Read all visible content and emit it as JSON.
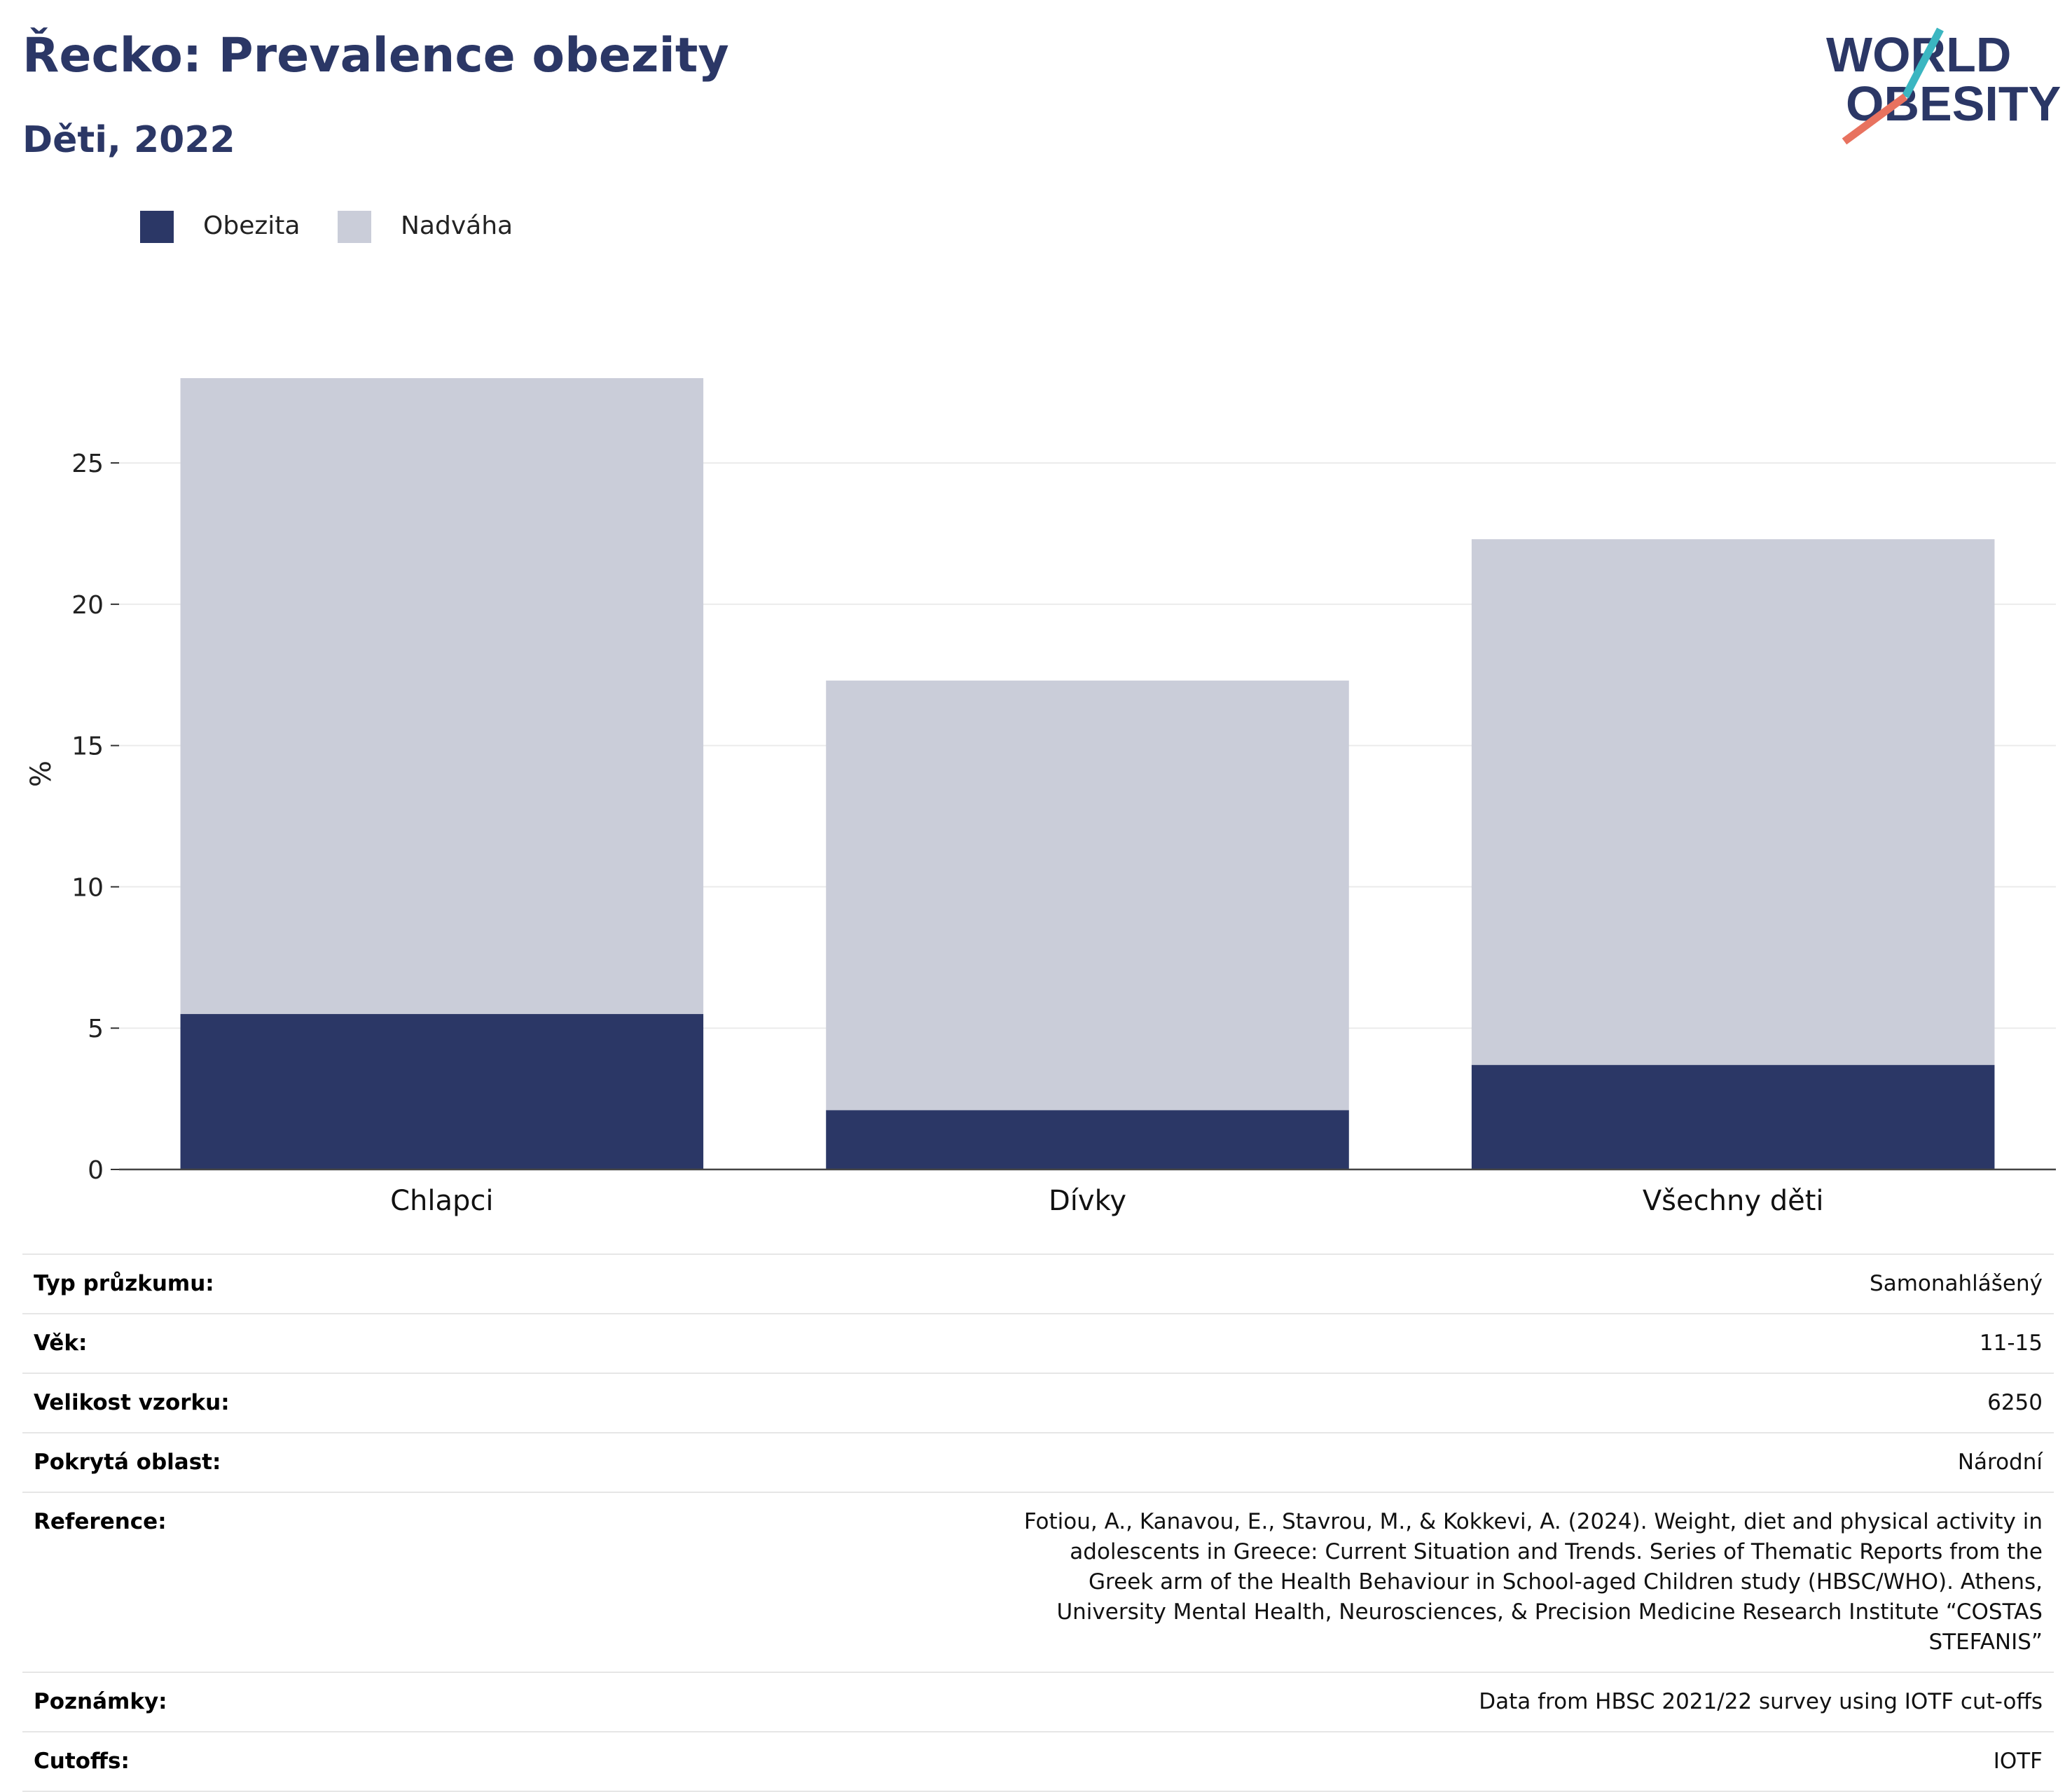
{
  "title": "Řecko: Prevalence obezity",
  "subtitle": "Děti, 2022",
  "logo": {
    "line1": "WORLD",
    "line2": "OBESITY"
  },
  "colors": {
    "obesity": "#2b3766",
    "overweight": "#cacdd9",
    "heading": "#2b3766",
    "logo_teal": "#3bb6c1",
    "logo_red": "#e8725f"
  },
  "legend": [
    {
      "label": "Obezita",
      "color": "#2b3766"
    },
    {
      "label": "Nadváha",
      "color": "#cacdd9"
    }
  ],
  "chart_data": {
    "type": "bar",
    "stacked": true,
    "categories": [
      "Chlapci",
      "Dívky",
      "Všechny děti"
    ],
    "series": [
      {
        "name": "Obezita",
        "values": [
          5.5,
          2.1,
          3.7
        ]
      },
      {
        "name": "Nadváha",
        "values": [
          22.5,
          15.2,
          18.6
        ]
      }
    ],
    "totals": [
      28.0,
      17.3,
      22.3
    ],
    "ylabel": "%",
    "xlabel": "",
    "ylim": [
      0,
      28
    ],
    "yticks": [
      0,
      5,
      10,
      15,
      20,
      25
    ],
    "grid": true,
    "legend_position": "top-left"
  },
  "info": [
    {
      "key": "Typ průzkumu:",
      "value": "Samonahlášený"
    },
    {
      "key": "Věk:",
      "value": "11-15"
    },
    {
      "key": "Velikost vzorku:",
      "value": "6250"
    },
    {
      "key": "Pokrytá oblast:",
      "value": "Národní"
    },
    {
      "key": "Reference:",
      "value": "Fotiou, A., Kanavou, E., Stavrou, M., & Kokkevi, A. (2024). Weight, diet and physical activity in adolescents in Greece: Current Situation and Trends. Series of Thematic Reports from the Greek arm of the Health Behaviour in School-aged Children study (HBSC/WHO). Athens, University Mental Health, Neurosciences, & Precision Medicine Research Institute “COSTAS STEFANIS”"
    },
    {
      "key": "Poznámky:",
      "value": "Data from HBSC 2021/22 survey using IOTF cut-offs"
    },
    {
      "key": "Cutoffs:",
      "value": "IOTF"
    }
  ]
}
